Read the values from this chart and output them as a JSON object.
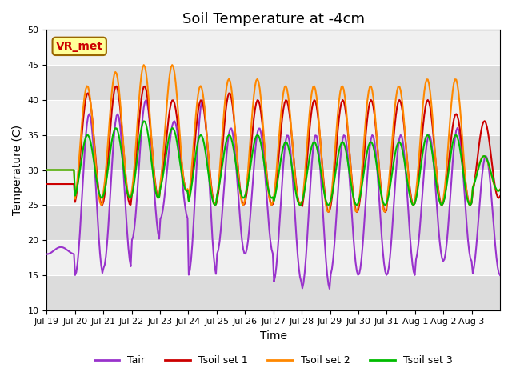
{
  "title": "Soil Temperature at -4cm",
  "xlabel": "Time",
  "ylabel": "Temperature (C)",
  "ylim": [
    10,
    50
  ],
  "n_days": 16,
  "tick_labels": [
    "Jul 19",
    "Jul 20",
    "Jul 21",
    "Jul 22",
    "Jul 23",
    "Jul 24",
    "Jul 25",
    "Jul 26",
    "Jul 27",
    "Jul 28",
    "Jul 29",
    "Jul 30",
    "Jul 31",
    "Aug 1",
    "Aug 2",
    "Aug 3"
  ],
  "legend_labels": [
    "Tair",
    "Tsoil set 1",
    "Tsoil set 2",
    "Tsoil set 3"
  ],
  "colors": {
    "Tair": "#9933cc",
    "Tsoil set 1": "#cc0000",
    "Tsoil set 2": "#ff8800",
    "Tsoil set 3": "#00bb00"
  },
  "line_widths": {
    "Tair": 1.5,
    "Tsoil set 1": 1.5,
    "Tsoil set 2": 1.5,
    "Tsoil set 3": 1.5
  },
  "tair_min": [
    18,
    15,
    16,
    20,
    23,
    15,
    18,
    18,
    14,
    13,
    15,
    15,
    15,
    17,
    17,
    15
  ],
  "tair_max": [
    19,
    38,
    38,
    40,
    37,
    40,
    36,
    36,
    35,
    35,
    35,
    35,
    35,
    35,
    36,
    32
  ],
  "tsoil1_min": [
    28,
    25,
    25,
    26,
    27,
    25,
    25,
    25,
    25,
    24,
    24,
    24,
    25,
    25,
    25,
    26
  ],
  "tsoil1_max": [
    28,
    41,
    42,
    42,
    40,
    40,
    41,
    40,
    40,
    40,
    40,
    40,
    40,
    40,
    38,
    37
  ],
  "tsoil2_min": [
    30,
    25,
    26,
    26,
    27,
    25,
    25,
    25,
    25,
    24,
    24,
    24,
    25,
    25,
    25,
    27
  ],
  "tsoil2_max": [
    30,
    42,
    44,
    45,
    45,
    42,
    43,
    43,
    42,
    42,
    42,
    42,
    42,
    43,
    43,
    32
  ],
  "tsoil3_min": [
    30,
    26,
    26,
    26,
    27,
    25,
    26,
    26,
    25,
    25,
    25,
    25,
    25,
    25,
    25,
    27
  ],
  "tsoil3_max": [
    30,
    35,
    36,
    37,
    36,
    35,
    35,
    35,
    34,
    34,
    34,
    34,
    34,
    35,
    35,
    32
  ],
  "annotation_text": "VR_met",
  "annotation_color": "#cc0000",
  "annotation_bg": "#ffff99",
  "annotation_edge": "#996600",
  "plot_bg": "#f0f0f0",
  "band_color": "#d8d8d8",
  "title_fontsize": 13,
  "axis_label_fontsize": 10,
  "tick_fontsize": 8,
  "legend_fontsize": 9
}
